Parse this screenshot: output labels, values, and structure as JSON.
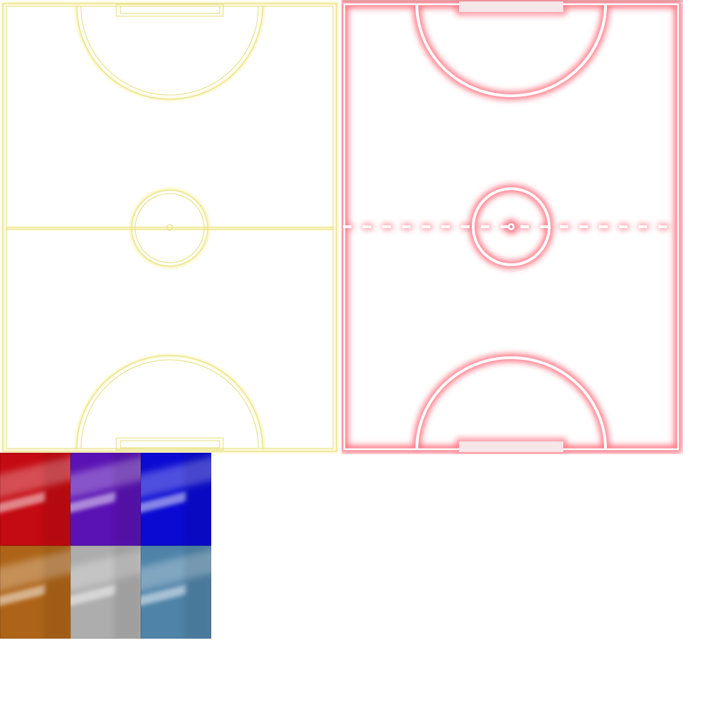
{
  "courts": [
    {
      "id": "court-yellow",
      "style": "outline",
      "line_color": "#e7de80",
      "glow_color": "#fbf7c8",
      "halfway_line": "solid"
    },
    {
      "id": "court-red",
      "style": "neon",
      "line_color": "#ffffff",
      "glow_color": "#ff5a6a",
      "halfway_line": "dashed"
    }
  ],
  "swatches": [
    {
      "name": "red",
      "color": "#c40a12"
    },
    {
      "name": "purple",
      "color": "#5a12b4"
    },
    {
      "name": "blue",
      "color": "#0a0ad2"
    },
    {
      "name": "orange",
      "color": "#ae6418"
    },
    {
      "name": "silver",
      "color": "#adadad"
    },
    {
      "name": "steel-blue",
      "color": "#4f83a8"
    }
  ]
}
